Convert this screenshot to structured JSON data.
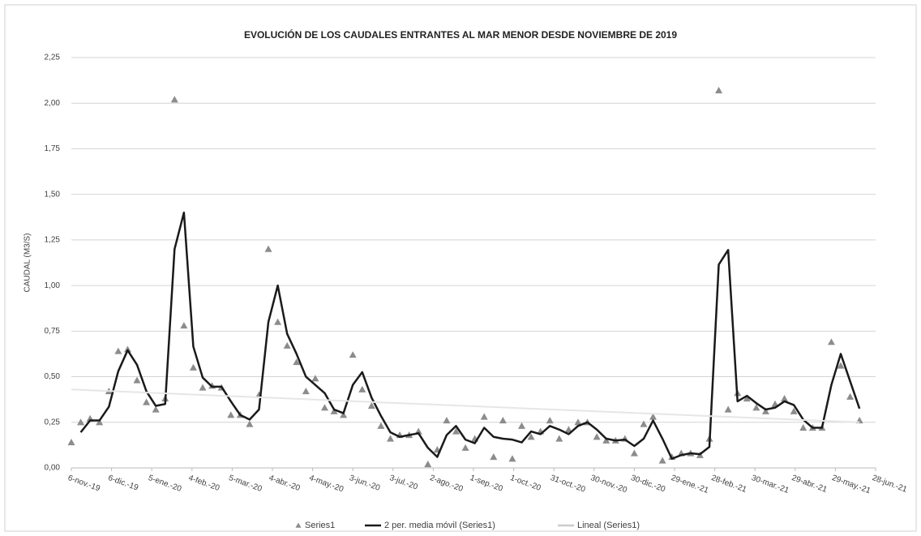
{
  "chart_data": {
    "type": "scatter",
    "title": "EVOLUCIÓN DE LOS CAUDALES ENTRANTES AL MAR MENOR DESDE NOVIEMBRE DE 2019",
    "y_label": "CAUDAL (M3/S)",
    "xlim": [
      43775,
      44375
    ],
    "xticks": [
      {
        "value": 43775,
        "label": "6-nov.-19"
      },
      {
        "value": 43805,
        "label": "6-dic.-19"
      },
      {
        "value": 43835,
        "label": "5-ene.-20"
      },
      {
        "value": 43865,
        "label": "4-feb.-20"
      },
      {
        "value": 43895,
        "label": "5-mar.-20"
      },
      {
        "value": 43925,
        "label": "4-abr.-20"
      },
      {
        "value": 43955,
        "label": "4-may.-20"
      },
      {
        "value": 43985,
        "label": "3-jun.-20"
      },
      {
        "value": 44015,
        "label": "3-jul.-20"
      },
      {
        "value": 44045,
        "label": "2-ago.-20"
      },
      {
        "value": 44075,
        "label": "1-sep.-20"
      },
      {
        "value": 44105,
        "label": "1-oct.-20"
      },
      {
        "value": 44135,
        "label": "31-oct.-20"
      },
      {
        "value": 44165,
        "label": "30-nov.-20"
      },
      {
        "value": 44195,
        "label": "30-dic.-20"
      },
      {
        "value": 44225,
        "label": "29-ene.-21"
      },
      {
        "value": 44255,
        "label": "28-feb.-21"
      },
      {
        "value": 44285,
        "label": "30-mar.-21"
      },
      {
        "value": 44315,
        "label": "29-abr.-21"
      },
      {
        "value": 44345,
        "label": "29-may.-21"
      },
      {
        "value": 44375,
        "label": "28-jun.-21"
      }
    ],
    "ylim": [
      0,
      2.25
    ],
    "yticks": [
      {
        "value": 0,
        "label": "0,00"
      },
      {
        "value": 0.25,
        "label": "0,25"
      },
      {
        "value": 0.5,
        "label": "0,50"
      },
      {
        "value": 0.75,
        "label": "0,75"
      },
      {
        "value": 1,
        "label": "1,00"
      },
      {
        "value": 1.25,
        "label": "1,25"
      },
      {
        "value": 1.5,
        "label": "1,50"
      },
      {
        "value": 1.75,
        "label": "1,75"
      },
      {
        "value": 2,
        "label": "2,00"
      },
      {
        "value": 2.25,
        "label": "2,25"
      }
    ],
    "grid": true,
    "legend": "bottom",
    "x": [
      43775,
      43782,
      43789,
      43796,
      43803,
      43810,
      43817,
      43824,
      43831,
      43838,
      43845,
      43852,
      43859,
      43866,
      43873,
      43880,
      43887,
      43894,
      43901,
      43908,
      43915,
      43922,
      43929,
      43936,
      43943,
      43950,
      43957,
      43964,
      43971,
      43978,
      43985,
      43992,
      43999,
      44006,
      44013,
      44020,
      44027,
      44034,
      44041,
      44048,
      44055,
      44062,
      44069,
      44076,
      44083,
      44090,
      44097,
      44104,
      44111,
      44118,
      44125,
      44132,
      44139,
      44146,
      44153,
      44160,
      44167,
      44174,
      44181,
      44188,
      44195,
      44202,
      44209,
      44216,
      44223,
      44230,
      44237,
      44244,
      44251,
      44258,
      44265,
      44272,
      44279,
      44286,
      44293,
      44300,
      44307,
      44314,
      44321,
      44328,
      44335,
      44342,
      44349,
      44356,
      44363
    ],
    "series": [
      {
        "name": "Series1",
        "kind": "marker",
        "color": "#8c8c8c",
        "values": [
          0.14,
          0.25,
          0.27,
          0.25,
          0.42,
          0.64,
          0.65,
          0.48,
          0.36,
          0.32,
          0.38,
          2.02,
          0.78,
          0.55,
          0.44,
          0.45,
          0.44,
          0.29,
          0.29,
          0.24,
          0.4,
          1.2,
          0.8,
          0.67,
          0.58,
          0.42,
          0.49,
          0.33,
          0.31,
          0.29,
          0.62,
          0.43,
          0.34,
          0.23,
          0.16,
          0.18,
          0.18,
          0.2,
          0.02,
          0.1,
          0.26,
          0.2,
          0.11,
          0.16,
          0.28,
          0.06,
          0.26,
          0.05,
          0.23,
          0.17,
          0.2,
          0.26,
          0.16,
          0.21,
          0.25,
          0.25,
          0.17,
          0.15,
          0.15,
          0.16,
          0.08,
          0.24,
          0.28,
          0.04,
          0.06,
          0.08,
          0.08,
          0.07,
          0.16,
          2.07,
          0.32,
          0.41,
          0.38,
          0.33,
          0.31,
          0.35,
          0.38,
          0.31,
          0.22,
          0.22,
          0.22,
          0.69,
          0.56,
          0.39,
          0.26
        ]
      },
      {
        "name": "2 per. media móvil (Series1)",
        "kind": "line",
        "color": "#1a1a1a",
        "values": [
          null,
          0.195,
          0.26,
          0.26,
          0.335,
          0.53,
          0.645,
          0.565,
          0.42,
          0.34,
          0.35,
          1.2,
          1.4,
          0.665,
          0.495,
          0.445,
          0.445,
          0.365,
          0.29,
          0.265,
          0.32,
          0.8,
          1.0,
          0.735,
          0.625,
          0.5,
          0.455,
          0.41,
          0.32,
          0.3,
          0.455,
          0.525,
          0.385,
          0.285,
          0.195,
          0.17,
          0.18,
          0.19,
          0.11,
          0.06,
          0.18,
          0.23,
          0.155,
          0.135,
          0.22,
          0.17,
          0.16,
          0.155,
          0.14,
          0.2,
          0.185,
          0.23,
          0.21,
          0.185,
          0.23,
          0.25,
          0.21,
          0.16,
          0.15,
          0.155,
          0.12,
          0.16,
          0.26,
          0.16,
          0.05,
          0.07,
          0.08,
          0.075,
          0.115,
          1.115,
          1.195,
          0.365,
          0.395,
          0.355,
          0.32,
          0.33,
          0.365,
          0.345,
          0.265,
          0.22,
          0.22,
          0.455,
          0.625,
          0.475,
          0.325
        ]
      },
      {
        "name": "Lineal (Series1)",
        "kind": "line",
        "color": "#e6e6e6",
        "x": [
          43775,
          44363
        ],
        "values": [
          0.43,
          0.25
        ]
      }
    ]
  }
}
